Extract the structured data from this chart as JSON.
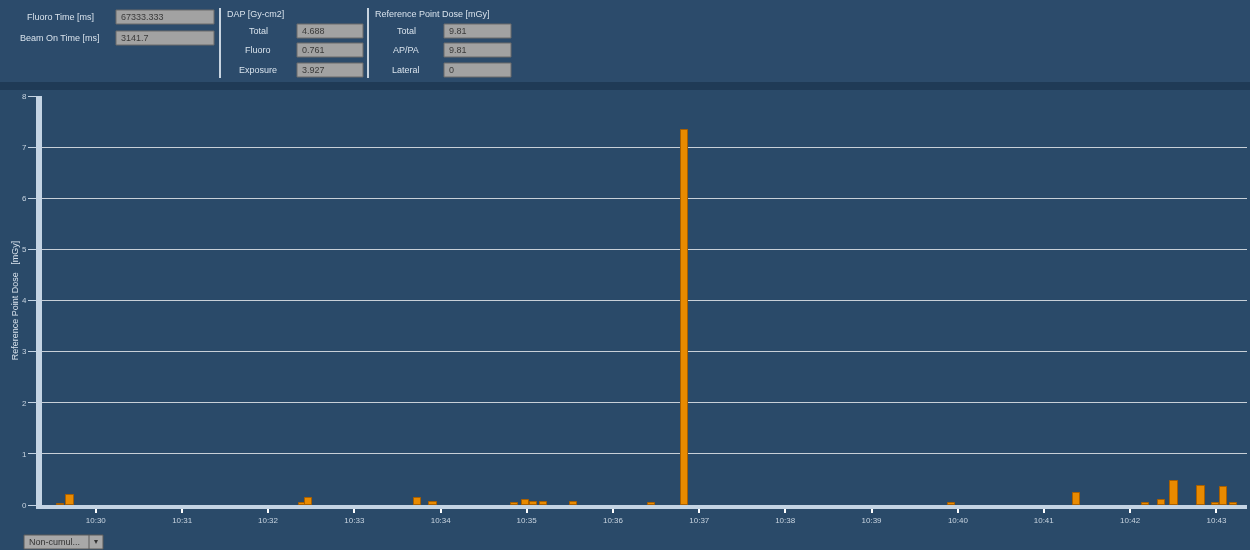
{
  "chart_data": [
    {
      "type": "other",
      "annotations": [
        "Fluoro Time [ms]",
        "67333.333",
        "Beam On Time [ms]",
        "3141.7",
        "DAP [Gy-cm2]",
        "Total",
        "4.688",
        "Fluoro",
        "0.761",
        "Exposure",
        "3.927",
        "Reference Point Dose [mGy]",
        "Total",
        "9.81",
        "AP/PA",
        "9.81",
        "Lateral",
        "0"
      ]
    },
    {
      "type": "bar",
      "ylabel": "Reference Point Dose   [mGy]",
      "annotations": [
        "Non-cumul..."
      ],
      "x": [
        10.4932,
        10.495,
        10.5399,
        10.5412,
        10.5622,
        10.5652,
        10.581,
        10.5831,
        10.5846,
        10.5866,
        10.5924,
        10.6075,
        10.6139,
        10.6655,
        10.6897,
        10.703,
        10.7061,
        10.7085,
        10.7137,
        10.7165,
        10.7181,
        10.72
      ],
      "values": [
        0.02,
        0.2,
        0.03,
        0.13,
        0.13,
        0.06,
        0.03,
        0.09,
        0.05,
        0.05,
        0.05,
        0.03,
        7.33,
        0.03,
        0.23,
        0.03,
        0.1,
        0.46,
        0.37,
        0.04,
        0.36,
        0.03
      ],
      "color": "#e88a00",
      "xlim": [
        10.4896,
        10.7226
      ],
      "xticks": [
        {
          "value": 10.5,
          "label": "10:30"
        },
        {
          "value": 10.5167,
          "label": "10:31"
        },
        {
          "value": 10.5333,
          "label": "10:32"
        },
        {
          "value": 10.55,
          "label": "10:33"
        },
        {
          "value": 10.5667,
          "label": "10:34"
        },
        {
          "value": 10.5833,
          "label": "10:35"
        },
        {
          "value": 10.6,
          "label": "10:36"
        },
        {
          "value": 10.6167,
          "label": "10:37"
        },
        {
          "value": 10.6333,
          "label": "10:38"
        },
        {
          "value": 10.65,
          "label": "10:39"
        },
        {
          "value": 10.6667,
          "label": "10:40"
        },
        {
          "value": 10.6833,
          "label": "10:41"
        },
        {
          "value": 10.7,
          "label": "10:42"
        },
        {
          "value": 10.7167,
          "label": "10:43"
        }
      ],
      "ylim": [
        0,
        8
      ],
      "yticks": [
        0,
        1,
        2,
        3,
        4,
        5,
        6,
        7,
        8
      ],
      "grid": "y"
    }
  ]
}
